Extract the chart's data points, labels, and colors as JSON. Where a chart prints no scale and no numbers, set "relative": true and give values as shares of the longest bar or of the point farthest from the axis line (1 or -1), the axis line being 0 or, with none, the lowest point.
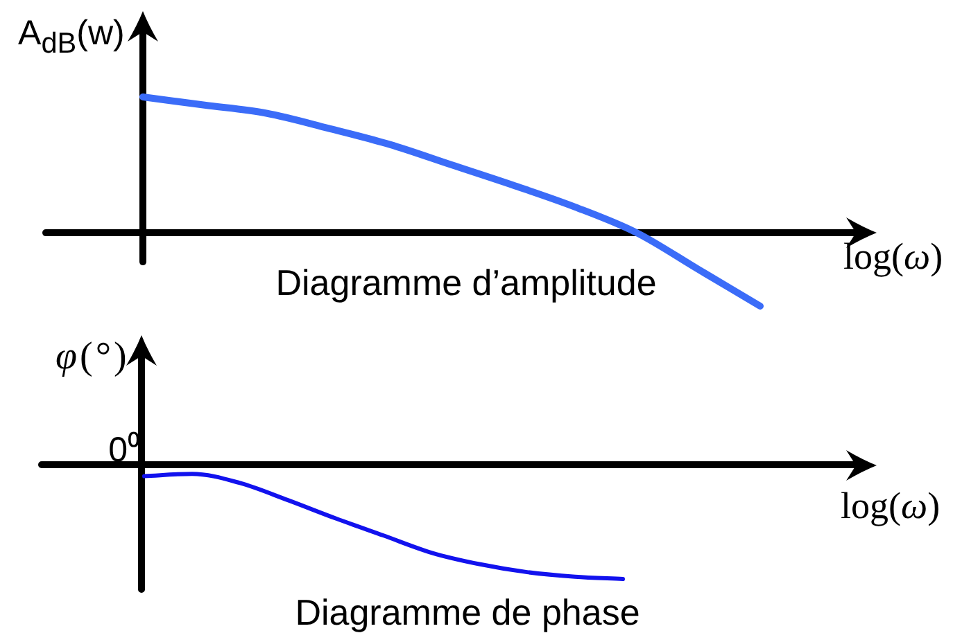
{
  "chart_data": [
    {
      "type": "line",
      "title": "Diagramme d’amplitude",
      "xlabel": "log(ω)",
      "ylabel": "A$_{dB}$(w)",
      "relative": true,
      "categories": [
        null,
        null,
        null,
        null,
        null,
        null,
        null,
        null,
        null,
        null,
        null
      ],
      "values": [
        1.0,
        0.94,
        0.88,
        0.77,
        0.65,
        0.5,
        0.35,
        0.19,
        0.0,
        -0.27,
        -0.54
      ],
      "color": "#3b6cf8"
    },
    {
      "type": "line",
      "title": "Diagramme de phase",
      "xlabel": "log(ω)",
      "ylabel": "φ(°)",
      "relative": true,
      "annotations": [
        "0⁰"
      ],
      "categories": [
        null,
        null,
        null,
        null,
        null,
        null,
        null,
        null,
        null,
        null,
        null
      ],
      "values": [
        -0.1,
        -0.08,
        -0.16,
        -0.31,
        -0.47,
        -0.62,
        -0.77,
        -0.87,
        -0.94,
        -0.98,
        -1.0
      ],
      "color": "#1212ee"
    }
  ]
}
